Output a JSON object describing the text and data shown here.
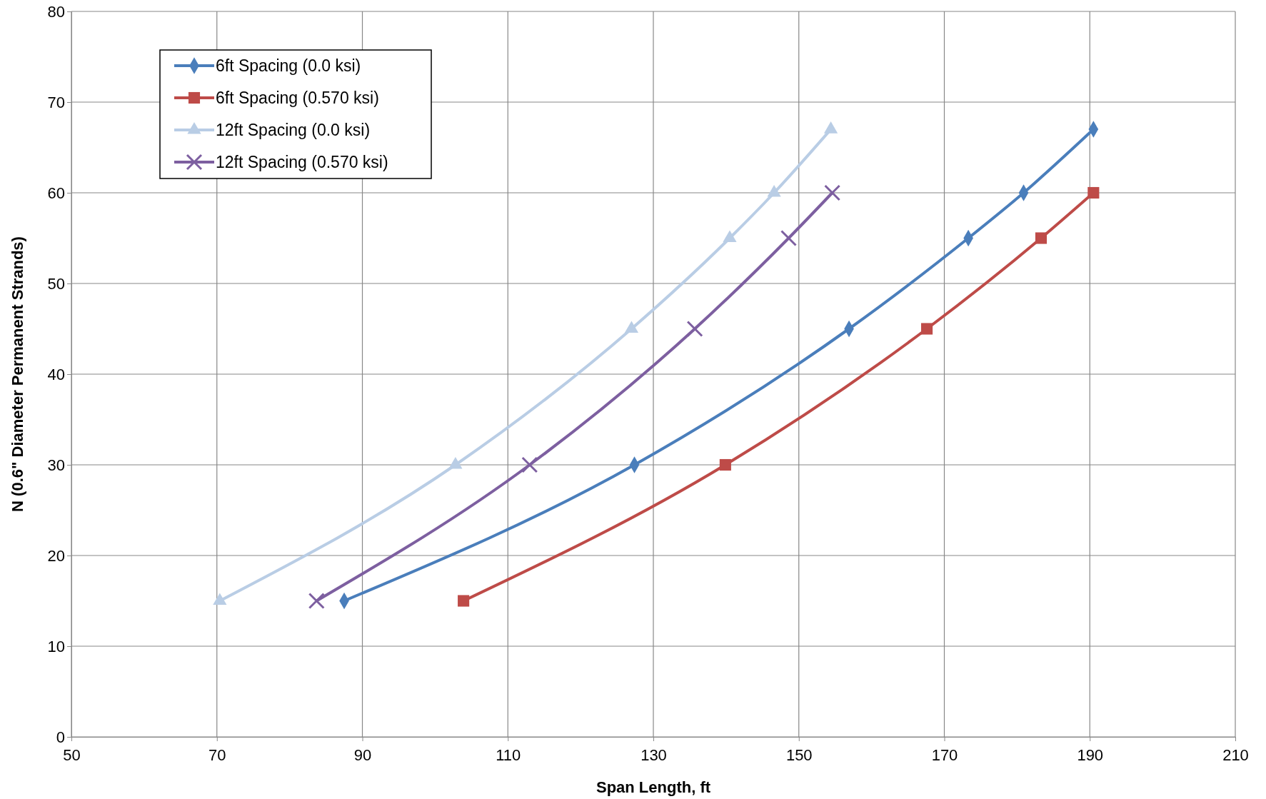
{
  "chart_data": {
    "type": "line",
    "xlabel": "Span Length, ft",
    "ylabel": "N (0.6\" Diameter Permanent Strands)",
    "xlim": [
      50,
      210
    ],
    "xticks": [
      50,
      70,
      90,
      110,
      130,
      150,
      170,
      190,
      210
    ],
    "ylim": [
      0,
      80
    ],
    "yticks": [
      0,
      10,
      20,
      30,
      40,
      50,
      60,
      70,
      80
    ],
    "grid": true,
    "legend": "top left",
    "series": [
      {
        "name": "6ft Spacing (0.0 ksi)",
        "color": "#4a7ebb",
        "marker": "diamond",
        "x": [
          87.5,
          127.4,
          156.9,
          173.3,
          180.9,
          190.5
        ],
        "values": [
          15,
          30,
          45,
          55,
          60,
          67
        ]
      },
      {
        "name": "6ft Spacing (0.570 ksi)",
        "color": "#be4b48",
        "marker": "square",
        "x": [
          103.9,
          139.9,
          167.6,
          183.3,
          190.5
        ],
        "values": [
          15,
          30,
          45,
          55,
          60
        ]
      },
      {
        "name": "12ft Spacing (0.0 ksi)",
        "color": "#b9cde5",
        "marker": "triangle",
        "x": [
          70.4,
          102.8,
          127,
          140.5,
          146.6,
          154.4
        ],
        "values": [
          15,
          30,
          45,
          55,
          60,
          67
        ]
      },
      {
        "name": "12ft Spacing (0.570 ksi)",
        "color": "#7d5fa0",
        "marker": "cross",
        "x": [
          83.7,
          113,
          135.7,
          148.6,
          154.6
        ],
        "values": [
          15,
          30,
          45,
          55,
          60
        ]
      }
    ]
  }
}
